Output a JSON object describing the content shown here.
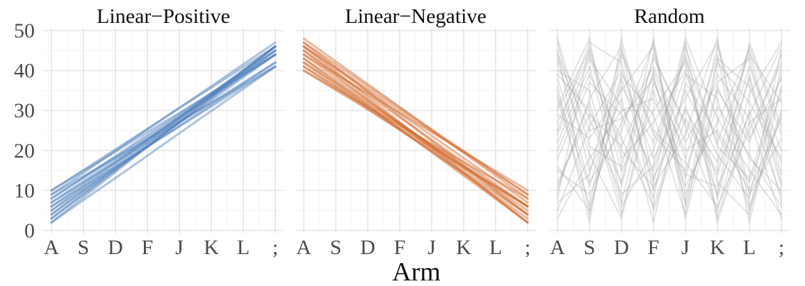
{
  "chart_data": {
    "type": "line",
    "xlabel": "Arm",
    "ylabel": "",
    "x_ticks": [
      "A",
      "S",
      "D",
      "F",
      "J",
      "K",
      "L",
      ";"
    ],
    "y_ticks": [
      "0",
      "10",
      "20",
      "30",
      "40",
      "50"
    ],
    "ylim": [
      0,
      50
    ],
    "grid": true,
    "legend": "none",
    "facets": [
      {
        "title": "Linear−Positive",
        "color": "#4f81bd",
        "series_values": [
          [
            2,
            8.3,
            14.6,
            20.9,
            27.1,
            33.4,
            39.7,
            46
          ],
          [
            3,
            9.1,
            15.3,
            21.4,
            27.6,
            33.7,
            39.9,
            46
          ],
          [
            4,
            9.7,
            15.4,
            21.1,
            26.9,
            32.6,
            38.3,
            44
          ],
          [
            5,
            10.3,
            15.6,
            20.9,
            26.1,
            31.4,
            36.7,
            42
          ],
          [
            6,
            11,
            16,
            21,
            26,
            31,
            36,
            41
          ],
          [
            7,
            12,
            17,
            22,
            27,
            32,
            37,
            42
          ],
          [
            8,
            13.1,
            18.3,
            23.4,
            28.6,
            33.7,
            38.9,
            44
          ],
          [
            9,
            14.4,
            19.9,
            25.3,
            30.7,
            36.1,
            41.6,
            47
          ],
          [
            10,
            15.1,
            20.3,
            25.4,
            30.6,
            35.7,
            40.9,
            46
          ],
          [
            3,
            9,
            15,
            21,
            27,
            33,
            39,
            45
          ],
          [
            5,
            10.9,
            16.7,
            22.6,
            28.4,
            34.3,
            40.1,
            46
          ],
          [
            7,
            12.3,
            17.6,
            22.9,
            28.1,
            33.4,
            38.7,
            44
          ],
          [
            4,
            10,
            16,
            22,
            28,
            34,
            40,
            46
          ],
          [
            9,
            13.6,
            18.1,
            22.7,
            27.3,
            31.9,
            36.4,
            41
          ],
          [
            6,
            11.6,
            17.1,
            22.7,
            28.3,
            33.9,
            39.4,
            45
          ],
          [
            2,
            7.6,
            13.1,
            18.7,
            24.3,
            29.9,
            35.4,
            41
          ],
          [
            8,
            13.3,
            18.6,
            23.9,
            29.1,
            34.4,
            39.7,
            45
          ],
          [
            10,
            14.9,
            19.7,
            24.6,
            29.4,
            34.3,
            39.1,
            44
          ]
        ]
      },
      {
        "title": "Linear−Negative",
        "color": "#d26a2e",
        "series_values": [
          [
            47,
            40.9,
            34.7,
            28.6,
            22.4,
            16.3,
            10.1,
            4
          ],
          [
            46,
            39.7,
            33.4,
            27.1,
            20.9,
            14.6,
            8.3,
            2
          ],
          [
            45,
            38.9,
            32.7,
            26.6,
            20.4,
            14.3,
            8.1,
            2
          ],
          [
            44,
            38.3,
            32.6,
            26.9,
            21.1,
            15.4,
            9.7,
            4
          ],
          [
            43,
            37.6,
            32.1,
            26.7,
            21.3,
            15.9,
            10.4,
            5
          ],
          [
            42,
            36.9,
            31.7,
            26.6,
            21.4,
            16.3,
            11.1,
            6
          ],
          [
            41,
            36,
            31,
            26,
            21,
            16,
            11,
            6
          ],
          [
            40,
            35.4,
            30.9,
            26.3,
            21.7,
            17.1,
            12.6,
            8
          ],
          [
            48,
            42.3,
            36.6,
            30.9,
            25.1,
            19.4,
            13.7,
            8
          ],
          [
            47,
            41.6,
            36.1,
            30.7,
            25.3,
            19.9,
            14.4,
            9
          ],
          [
            46,
            40.7,
            35.4,
            30.1,
            24.9,
            19.6,
            14.3,
            9
          ],
          [
            45,
            39.4,
            33.9,
            28.3,
            22.7,
            17.1,
            11.6,
            6
          ],
          [
            44,
            39.1,
            34.3,
            29.4,
            24.6,
            19.7,
            14.9,
            10
          ],
          [
            43,
            37.1,
            31.3,
            25.4,
            19.6,
            13.7,
            7.9,
            2
          ],
          [
            42,
            36.4,
            30.9,
            25.3,
            19.7,
            14.1,
            8.6,
            3
          ],
          [
            41,
            35.7,
            30.4,
            25.1,
            19.9,
            14.6,
            9.3,
            4
          ],
          [
            40,
            35.1,
            30.3,
            25.4,
            20.6,
            15.7,
            10.9,
            6
          ],
          [
            46,
            40.4,
            34.9,
            29.3,
            23.7,
            18.1,
            12.6,
            7
          ]
        ]
      },
      {
        "title": "Random",
        "color": "#9a9a9a",
        "series_values": [
          [
            45,
            4,
            38,
            12,
            47,
            3,
            30,
            9
          ],
          [
            31,
            48,
            7,
            40,
            18,
            44,
            2,
            36
          ],
          [
            10,
            33,
            46,
            5,
            28,
            15,
            41,
            20
          ],
          [
            38,
            12,
            25,
            47,
            3,
            35,
            22,
            44
          ],
          [
            27,
            44,
            15,
            30,
            42,
            8,
            39,
            11
          ],
          [
            5,
            26,
            40,
            18,
            33,
            47,
            6,
            30
          ],
          [
            42,
            19,
            3,
            35,
            11,
            27,
            45,
            14
          ],
          [
            18,
            37,
            29,
            8,
            46,
            21,
            13,
            39
          ],
          [
            33,
            6,
            44,
            24,
            15,
            39,
            28,
            3
          ],
          [
            22,
            41,
            11,
            44,
            26,
            5,
            34,
            47
          ],
          [
            47,
            15,
            33,
            2,
            37,
            24,
            10,
            28
          ],
          [
            12,
            29,
            21,
            39,
            7,
            43,
            36,
            17
          ],
          [
            36,
            2,
            48,
            13,
            30,
            17,
            46,
            24
          ],
          [
            8,
            46,
            18,
            27,
            40,
            12,
            4,
            41
          ],
          [
            29,
            23,
            35,
            46,
            9,
            31,
            19,
            6
          ],
          [
            40,
            35,
            6,
            20,
            44,
            2,
            27,
            33
          ],
          [
            15,
            9,
            27,
            41,
            22,
            37,
            43,
            12
          ],
          [
            25,
            47,
            42,
            10,
            35,
            19,
            8,
            45
          ],
          [
            3,
            18,
            30,
            33,
            13,
            46,
            23,
            38
          ],
          [
            44,
            28,
            9,
            16,
            48,
            28,
            15,
            4
          ],
          [
            20,
            39,
            23,
            6,
            31,
            9,
            47,
            26
          ],
          [
            34,
            11,
            39,
            29,
            4,
            42,
            32,
            18
          ],
          [
            11,
            32,
            4,
            37,
            20,
            25,
            12,
            35
          ],
          [
            48,
            21,
            16,
            43,
            27,
            14,
            38,
            7
          ],
          [
            24,
            43,
            31,
            15,
            39,
            33,
            5,
            29
          ],
          [
            7,
            14,
            45,
            25,
            17,
            6,
            25,
            42
          ],
          [
            39,
            30,
            12,
            48,
            6,
            36,
            18,
            10
          ],
          [
            16,
            5,
            36,
            22,
            43,
            22,
            44,
            32
          ],
          [
            30,
            45,
            20,
            11,
            24,
            48,
            9,
            23
          ],
          [
            43,
            25,
            28,
            38,
            14,
            11,
            29,
            46
          ]
        ]
      }
    ]
  }
}
